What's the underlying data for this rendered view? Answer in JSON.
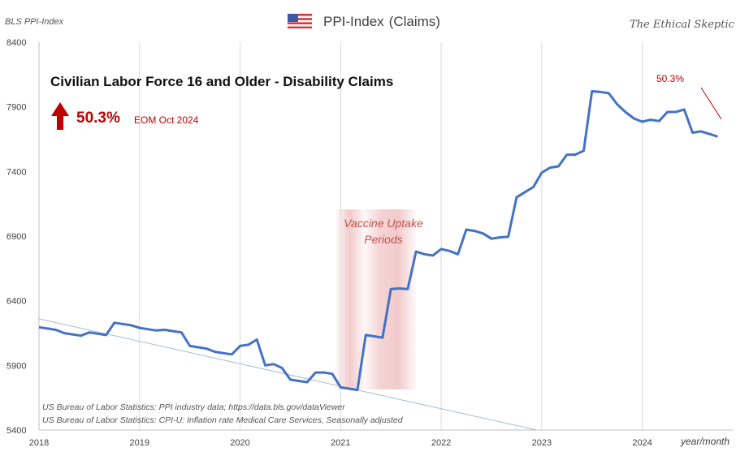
{
  "header": {
    "source_label": "BLS PPI-Index",
    "chart_heading": "PPI-Index",
    "chart_heading_sub": "(Claims)",
    "brand": "The Ethical Skeptic",
    "flag_icon": "us-flag-icon"
  },
  "callout": {
    "change_pct": "50.3%",
    "period_label": "EOM Oct 2024",
    "arrow_color": "#c00000",
    "corner_pct": "50.3%"
  },
  "annotation": {
    "vaccine_line1": "Vaccine Uptake",
    "vaccine_line2": "Periods",
    "band_color": "#e8a0a0"
  },
  "notes": [
    "US Bureau of Labor Statistics: PPI industry data; https://data.bls.gov/dataViewer",
    "US Bureau of Labor Statistics: CPI-U: Inflation rate Medical Care Services, Seasonally adjusted"
  ],
  "chart_data": {
    "type": "line",
    "title": "Civilian Labor Force 16 and Older - Disability Claims",
    "xlabel": "year/month",
    "ylabel": "",
    "x_ticks": [
      "2018",
      "2019",
      "2020",
      "2021",
      "2022",
      "2023",
      "2024"
    ],
    "y_ticks": [
      "5400",
      "5900",
      "6400",
      "6900",
      "7400",
      "7900",
      "8400"
    ],
    "ylim": [
      5400,
      8400
    ],
    "xlim": [
      2018.0,
      2024.9
    ],
    "grid": "vertical",
    "line_color": "#4472c4",
    "trend_color": "#a9b8d8",
    "series": [
      {
        "x": [
          2018.0,
          2018.083,
          2018.167,
          2018.25,
          2018.333,
          2018.417,
          2018.5,
          2018.583,
          2018.667,
          2018.75,
          2018.833,
          2018.917,
          2019.0,
          2019.083,
          2019.167,
          2019.25,
          2019.333,
          2019.417,
          2019.5,
          2019.583,
          2019.667,
          2019.75,
          2019.833,
          2019.917,
          2020.0,
          2020.083,
          2020.167,
          2020.25,
          2020.333,
          2020.417,
          2020.5,
          2020.583,
          2020.667,
          2020.75,
          2020.833,
          2020.917,
          2021.0,
          2021.083,
          2021.167,
          2021.25,
          2021.333,
          2021.417,
          2021.5,
          2021.583,
          2021.667,
          2021.75,
          2021.833,
          2021.917,
          2022.0,
          2022.083,
          2022.167,
          2022.25,
          2022.333,
          2022.417,
          2022.5,
          2022.583,
          2022.667,
          2022.75,
          2022.833,
          2022.917,
          2023.0,
          2023.083,
          2023.167,
          2023.25,
          2023.333,
          2023.417,
          2023.5,
          2023.583,
          2023.667,
          2023.75,
          2023.833,
          2023.917,
          2024.0,
          2024.083,
          2024.167,
          2024.25,
          2024.333,
          2024.417,
          2024.5,
          2024.583,
          2024.667,
          2024.75
        ],
        "values": [
          6195,
          6185,
          6175,
          6150,
          6140,
          6130,
          6155,
          6145,
          6135,
          6230,
          6220,
          6210,
          6190,
          6180,
          6170,
          6175,
          6165,
          6155,
          6050,
          6040,
          6030,
          6005,
          5995,
          5985,
          6050,
          6060,
          6100,
          5900,
          5910,
          5880,
          5790,
          5780,
          5770,
          5845,
          5845,
          5835,
          5730,
          5720,
          5710,
          6135,
          6125,
          6115,
          6490,
          6495,
          6490,
          6780,
          6760,
          6750,
          6800,
          6785,
          6760,
          6950,
          6940,
          6920,
          6880,
          6890,
          6895,
          7200,
          7240,
          7280,
          7390,
          7430,
          7440,
          7530,
          7530,
          7560,
          8020,
          8015,
          8005,
          7920,
          7860,
          7810,
          7785,
          7800,
          7790,
          7860,
          7860,
          7880,
          7700,
          7710,
          7690,
          7670
        ]
      }
    ],
    "trend_line": {
      "x": [
        2018.0,
        2022.95
      ],
      "y": [
        6260,
        5400
      ]
    },
    "vaccine_band": {
      "x": [
        2020.95,
        2021.75
      ]
    }
  }
}
